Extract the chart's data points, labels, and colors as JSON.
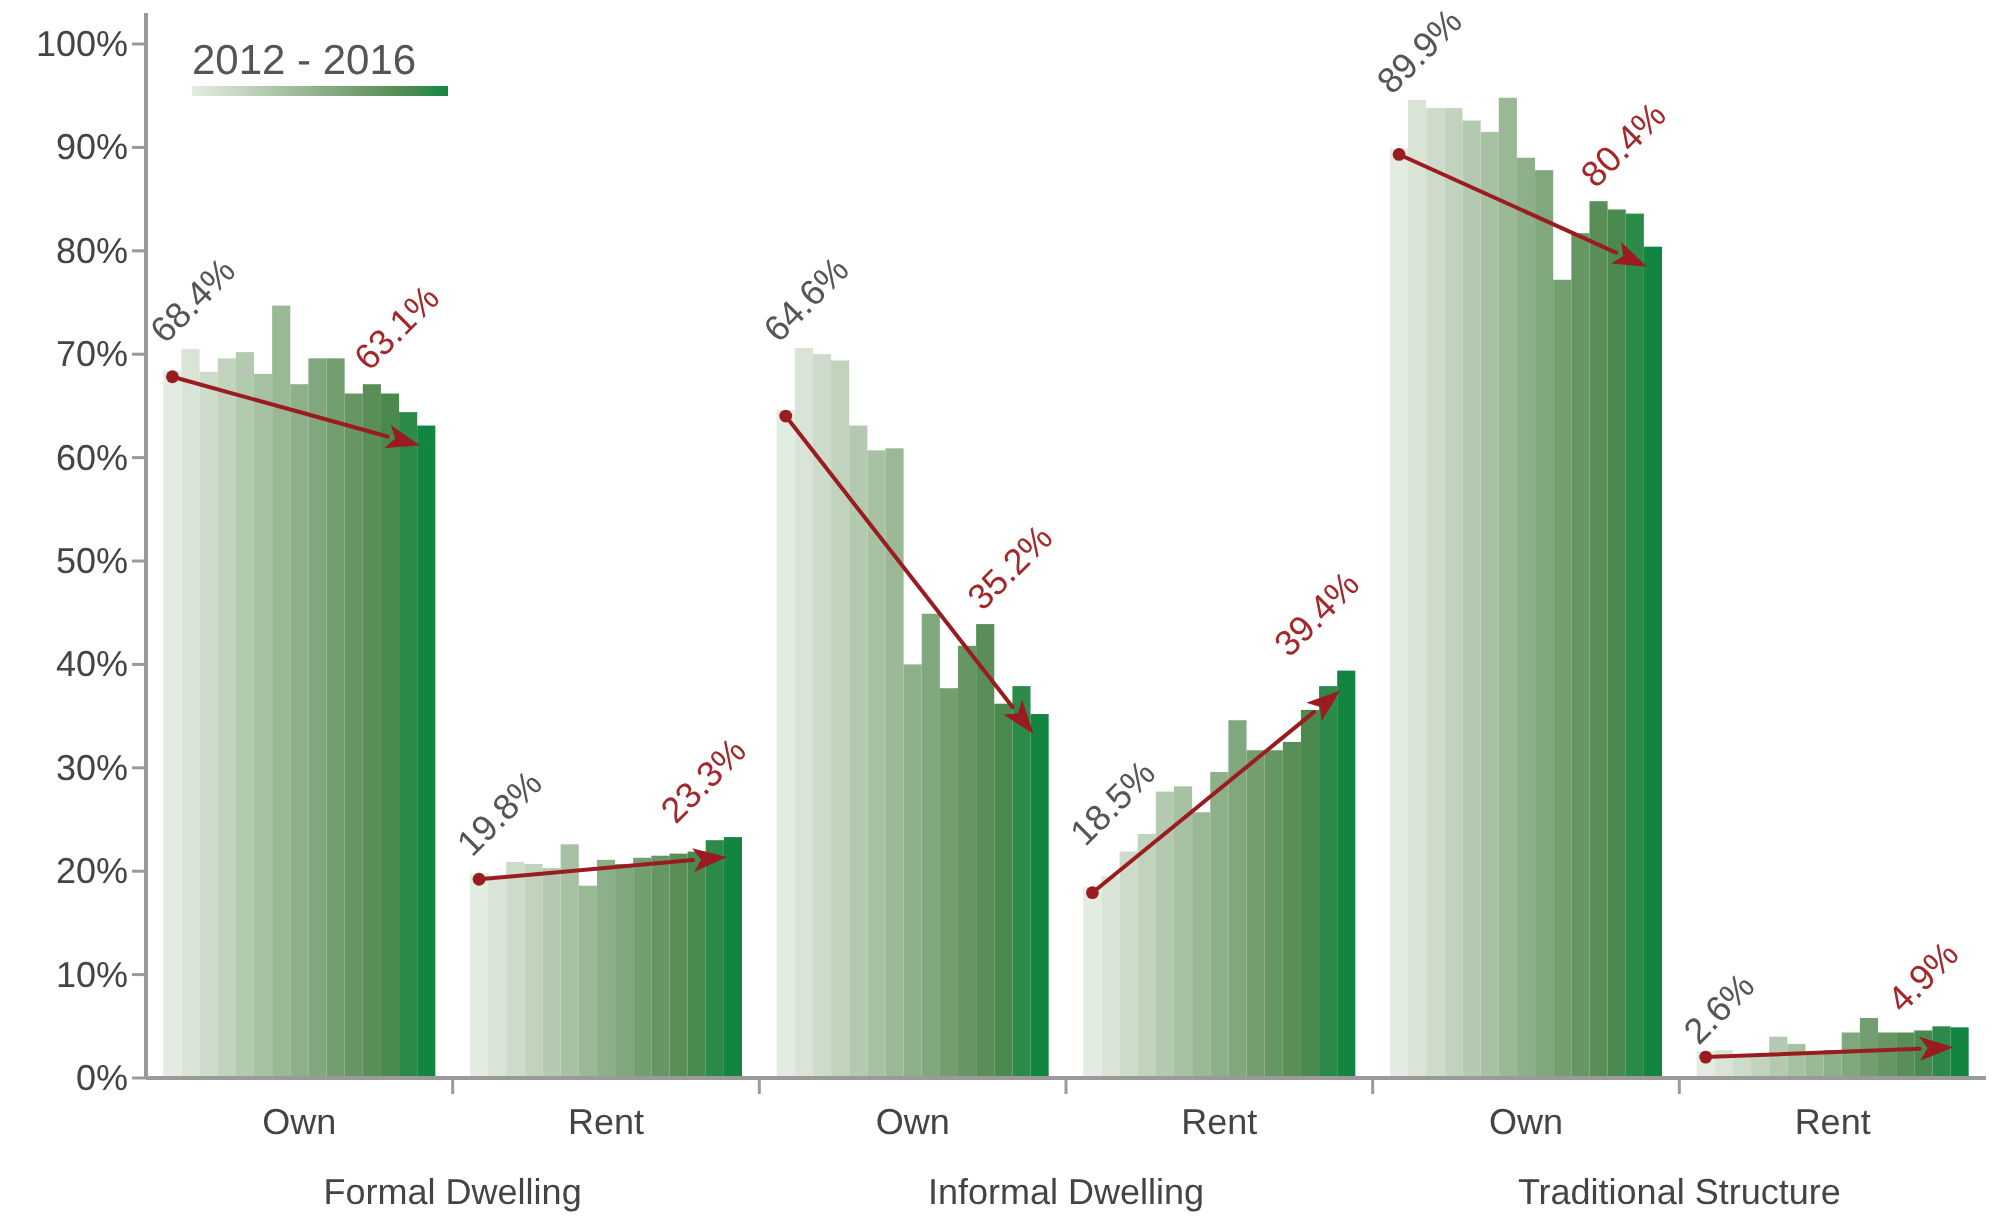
{
  "chart_data": {
    "type": "bar",
    "categories": [
      "Own",
      "Rent",
      "Own",
      "Rent",
      "Own",
      "Rent"
    ],
    "annotations": [
      "Formal Dwelling",
      "Informal Dwelling",
      "Traditional Structure"
    ],
    "legend_title": "2012 - 2016",
    "ylim": [
      0,
      103
    ],
    "yticks": [
      {
        "value": 0,
        "label": "0%"
      },
      {
        "value": 10,
        "label": "10%"
      },
      {
        "value": 20,
        "label": "20%"
      },
      {
        "value": 30,
        "label": "30%"
      },
      {
        "value": 40,
        "label": "40%"
      },
      {
        "value": 50,
        "label": "50%"
      },
      {
        "value": 60,
        "label": "60%"
      },
      {
        "value": 70,
        "label": "70%"
      },
      {
        "value": 80,
        "label": "80%"
      },
      {
        "value": 90,
        "label": "90%"
      },
      {
        "value": 100,
        "label": "100%"
      }
    ],
    "series": [
      {
        "color": "#e3ece1",
        "values": [
          68.4,
          19.8,
          64.6,
          18.5,
          89.9,
          2.6
        ],
        "value_labels": [
          "68.4%",
          "19.8%",
          "64.6%",
          "18.5%",
          "89.9%",
          "2.6%"
        ]
      },
      {
        "color": "#d9e4d6",
        "values": [
          70.5,
          19.4,
          70.6,
          19.5,
          94.6,
          2.7
        ]
      },
      {
        "color": "#cddbca",
        "values": [
          68.3,
          20.9,
          70.0,
          21.9,
          93.8,
          2.1
        ]
      },
      {
        "color": "#c1d3bd",
        "values": [
          69.6,
          20.7,
          69.4,
          23.6,
          93.8,
          2.3
        ]
      },
      {
        "color": "#b4cab0",
        "values": [
          70.2,
          20.3,
          63.1,
          27.7,
          92.6,
          4.0
        ]
      },
      {
        "color": "#a7c1a3",
        "values": [
          68.1,
          22.6,
          60.7,
          28.2,
          91.5,
          3.3
        ]
      },
      {
        "color": "#9ab896",
        "values": [
          74.7,
          18.6,
          60.9,
          25.7,
          94.8,
          2.5
        ]
      },
      {
        "color": "#8daf8a",
        "values": [
          67.1,
          21.1,
          40.0,
          29.6,
          89.0,
          2.7
        ]
      },
      {
        "color": "#80a77d",
        "values": [
          69.6,
          20.7,
          44.9,
          34.6,
          87.8,
          4.4
        ]
      },
      {
        "color": "#739f70",
        "values": [
          69.6,
          21.3,
          37.7,
          31.7,
          77.2,
          5.8
        ]
      },
      {
        "color": "#669763",
        "values": [
          66.2,
          21.5,
          41.8,
          31.7,
          81.7,
          4.4
        ]
      },
      {
        "color": "#598f57",
        "values": [
          67.1,
          21.7,
          43.9,
          32.5,
          84.8,
          4.4
        ]
      },
      {
        "color": "#4a8a4f",
        "values": [
          66.2,
          21.9,
          36.2,
          35.6,
          84.0,
          4.6
        ]
      },
      {
        "color": "#2c8a4b",
        "values": [
          64.4,
          23.0,
          37.9,
          37.9,
          83.6,
          5.0
        ]
      },
      {
        "color": "#128541",
        "values": [
          63.1,
          23.3,
          35.2,
          39.4,
          80.4,
          4.9
        ],
        "value_labels": [
          "63.1%",
          "23.3%",
          "35.2%",
          "39.4%",
          "80.4%",
          "4.9%"
        ]
      }
    ]
  }
}
